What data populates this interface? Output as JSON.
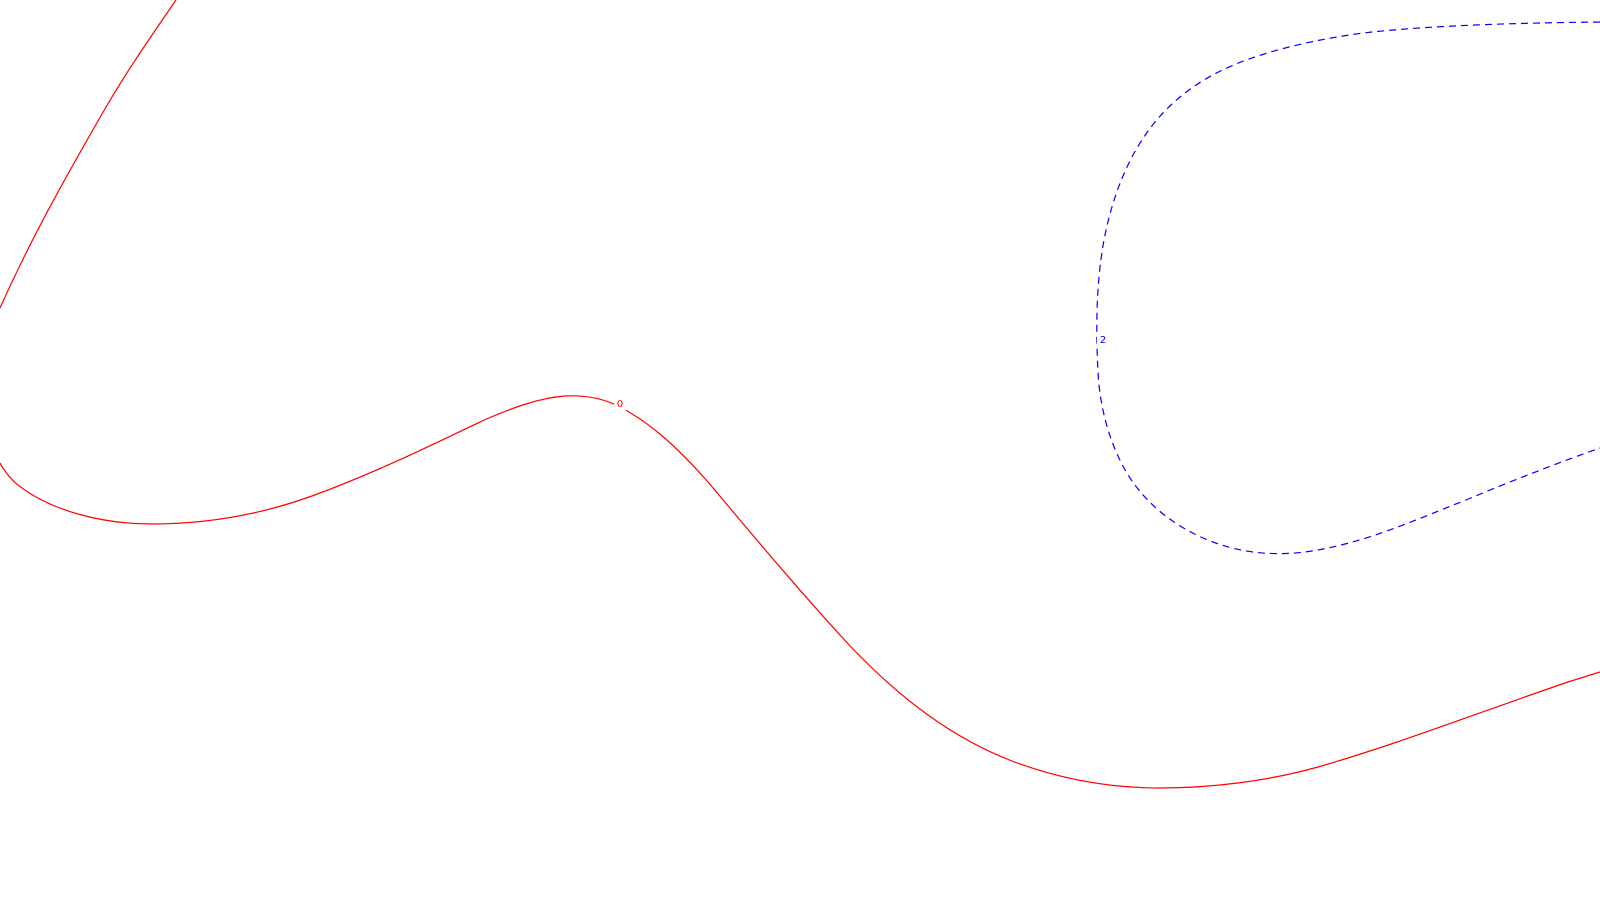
{
  "map": {
    "background_color": "#ffffff",
    "contours": [
      {
        "label": "0",
        "color": "#ff0000",
        "line_style": "solid"
      },
      {
        "label": "2",
        "color": "#0000ff",
        "line_style": "dashed"
      }
    ]
  }
}
